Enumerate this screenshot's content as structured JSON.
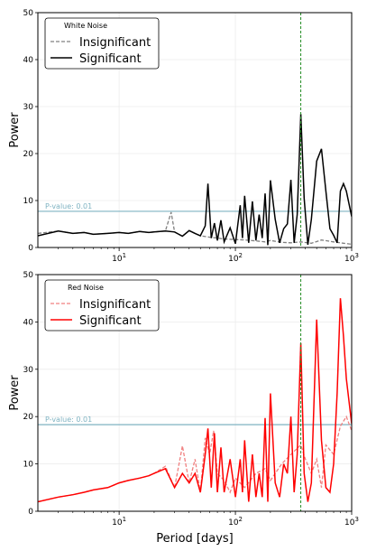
{
  "chart_data": [
    {
      "type": "line",
      "title": "",
      "xlabel": "",
      "ylabel": "Power",
      "xscale": "log",
      "xlim": [
        2,
        1000
      ],
      "ylim": [
        0,
        50
      ],
      "yticks": [
        "0",
        "10",
        "20",
        "30",
        "40",
        "50"
      ],
      "xticks": [
        "10^1",
        "10^2",
        "10^3"
      ],
      "threshold": {
        "label": "P-value: 0.01",
        "value": 7.7,
        "color": "#7fb3c2"
      },
      "marker_period": 365,
      "legend": {
        "title": "White Noise",
        "position": "top-left"
      },
      "series": [
        {
          "name": "Insignificant",
          "style": "dashed",
          "color": "#808080",
          "x": [
            2,
            3,
            4,
            5,
            6,
            8,
            10,
            12,
            15,
            18,
            20,
            25,
            28,
            30,
            35,
            40,
            45,
            50,
            60,
            70,
            80,
            100,
            120,
            150,
            180,
            200,
            250,
            300,
            365,
            450,
            550,
            700,
            850,
            1000
          ],
          "y": [
            3,
            3.5,
            3,
            3.2,
            2.8,
            3,
            3.2,
            3,
            3.4,
            3.2,
            3.3,
            3.5,
            7.5,
            3.3,
            2.4,
            3.6,
            3,
            2.5,
            2.2,
            2,
            1.8,
            1.7,
            1.6,
            1.4,
            1.2,
            1.5,
            1.1,
            1,
            1.2,
            0.9,
            1.6,
            1.2,
            0.9,
            0.7
          ]
        },
        {
          "name": "Significant",
          "style": "solid",
          "color": "#000000",
          "x": [
            2,
            3,
            4,
            5,
            6,
            8,
            10,
            12,
            15,
            18,
            20,
            25,
            30,
            35,
            40,
            45,
            50,
            55,
            58,
            62,
            66,
            70,
            75,
            80,
            90,
            100,
            110,
            115,
            120,
            130,
            140,
            150,
            160,
            170,
            180,
            190,
            200,
            220,
            240,
            260,
            280,
            300,
            320,
            340,
            365,
            390,
            420,
            450,
            500,
            550,
            600,
            650,
            700,
            750,
            800,
            850,
            900,
            1000
          ],
          "y": [
            2.5,
            3.5,
            3,
            3.2,
            2.8,
            3,
            3.2,
            3,
            3.4,
            3.2,
            3.3,
            3.5,
            3.3,
            2.4,
            3.6,
            3,
            2.5,
            4.6,
            13.6,
            2,
            5.2,
            1.5,
            5.8,
            1.2,
            4.2,
            0.8,
            9,
            2,
            11,
            1,
            9.8,
            1.5,
            7,
            2,
            11.5,
            0.5,
            14.3,
            6,
            1,
            4,
            5,
            14.4,
            1,
            7,
            28.4,
            10.5,
            0.6,
            6,
            18.4,
            21,
            12,
            4,
            2.6,
            1,
            12,
            13.6,
            12,
            6.6
          ]
        }
      ]
    },
    {
      "type": "line",
      "title": "",
      "xlabel": "Period [days]",
      "ylabel": "Power",
      "xscale": "log",
      "xlim": [
        2,
        1000
      ],
      "ylim": [
        0,
        50
      ],
      "yticks": [
        "0",
        "10",
        "20",
        "30",
        "40",
        "50"
      ],
      "xticks": [
        "10^1",
        "10^2",
        "10^3"
      ],
      "threshold": {
        "label": "P-value: 0.01",
        "value": 18.3,
        "color": "#7fb3c2"
      },
      "marker_period": 365,
      "legend": {
        "title": "Red Noise",
        "position": "top-left"
      },
      "series": [
        {
          "name": "Insignificant",
          "style": "dashed",
          "color": "#f08080",
          "x": [
            2,
            3,
            4,
            5,
            6,
            8,
            10,
            12,
            15,
            18,
            20,
            25,
            30,
            35,
            40,
            45,
            50,
            55,
            60,
            65,
            70,
            80,
            90,
            100,
            120,
            150,
            180,
            200,
            250,
            300,
            365,
            400,
            450,
            500,
            550,
            600,
            700,
            800,
            900,
            1000
          ],
          "y": [
            2,
            3,
            3.5,
            4,
            4.5,
            5,
            6,
            6.5,
            7,
            7.5,
            8,
            9.5,
            5,
            13.8,
            6,
            11,
            4,
            15.5,
            12,
            17,
            8,
            6.5,
            4,
            7,
            5,
            8,
            9,
            6.5,
            10,
            12,
            14,
            11,
            8,
            11,
            5,
            14,
            12,
            18,
            20,
            17
          ]
        },
        {
          "name": "Significant",
          "style": "solid",
          "color": "#ff0000",
          "x": [
            2,
            3,
            4,
            5,
            6,
            8,
            10,
            12,
            15,
            18,
            20,
            25,
            30,
            35,
            40,
            45,
            50,
            55,
            58,
            62,
            66,
            70,
            75,
            80,
            90,
            100,
            110,
            115,
            120,
            130,
            140,
            150,
            160,
            170,
            180,
            190,
            200,
            220,
            240,
            260,
            280,
            300,
            320,
            340,
            365,
            390,
            420,
            450,
            500,
            550,
            600,
            650,
            700,
            750,
            800,
            850,
            900,
            1000
          ],
          "y": [
            2,
            3,
            3.5,
            4,
            4.5,
            5,
            6,
            6.5,
            7,
            7.5,
            8,
            9,
            5,
            8,
            6,
            8,
            4,
            12,
            17.5,
            5,
            16.5,
            4,
            13.5,
            4,
            11,
            3,
            11,
            4,
            15,
            2,
            12,
            3,
            8,
            3,
            19.7,
            2,
            24.9,
            6,
            3,
            10,
            8,
            20,
            4,
            12,
            35.5,
            8,
            2,
            6,
            40.5,
            15,
            5,
            4,
            10,
            25,
            45,
            37,
            28,
            18.5
          ]
        }
      ]
    }
  ]
}
